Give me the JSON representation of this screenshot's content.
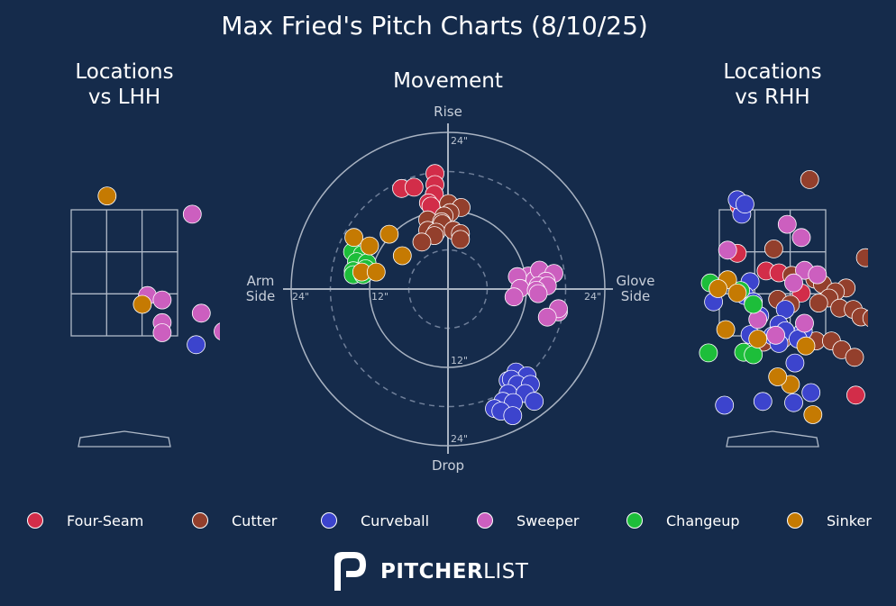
{
  "title": "Max Fried's Pitch Charts (8/10/25)",
  "panels": {
    "lhh_title_line1": "Locations",
    "lhh_title_line2": "vs LHH",
    "movement_title": "Movement",
    "rhh_title_line1": "Locations",
    "rhh_title_line2": "vs RHH"
  },
  "movement_axes": {
    "top": "Rise",
    "bottom": "Drop",
    "left_line1": "Arm",
    "left_line2": "Side",
    "right_line1": "Glove",
    "right_line2": "Side",
    "ring_labels": {
      "top": "24\"",
      "bottom_inner": "12\"",
      "bottom_outer": "24\"",
      "left_outer": "24\"",
      "left_inner": "12\"",
      "right_outer": "24\""
    }
  },
  "colors": {
    "background": "#152b4b",
    "Four-Seam": "#d22d49",
    "Cutter": "#933f2c",
    "Curveball": "#3c44cd",
    "Sweeper": "#cc5fbf",
    "Changeup": "#1dbe3a",
    "Sinker": "#c57a02"
  },
  "legend": [
    "Four-Seam",
    "Cutter",
    "Curveball",
    "Sweeper",
    "Changeup",
    "Sinker"
  ],
  "brand": {
    "bold": "PITCHER",
    "light": "LIST",
    "icon": "pitcherlist-p-logo-icon"
  },
  "chart_data": [
    {
      "type": "scatter",
      "title": "Locations vs LHH",
      "xlabel": "",
      "ylabel": "",
      "units": "catcher-view plate location, feet",
      "xlim": [
        -1.42,
        2.55
      ],
      "ylim": [
        -0.4,
        4.73
      ],
      "strike_zone": {
        "x": [
          -0.83,
          0.83
        ],
        "z": [
          1.5,
          3.5
        ]
      },
      "points": [
        {
          "pitch": "Sinker",
          "x": -0.27,
          "z": 3.72
        },
        {
          "pitch": "Sweeper",
          "x": 1.06,
          "z": 3.43
        },
        {
          "pitch": "Sweeper",
          "x": 0.36,
          "z": 2.14
        },
        {
          "pitch": "Sweeper",
          "x": 0.59,
          "z": 2.07
        },
        {
          "pitch": "Sinker",
          "x": 0.28,
          "z": 2.0
        },
        {
          "pitch": "Sweeper",
          "x": 1.2,
          "z": 1.86
        },
        {
          "pitch": "Sweeper",
          "x": 0.59,
          "z": 1.71
        },
        {
          "pitch": "Sweeper",
          "x": 0.59,
          "z": 1.55
        },
        {
          "pitch": "Sweeper",
          "x": 1.54,
          "z": 1.57
        },
        {
          "pitch": "Curveball",
          "x": 1.12,
          "z": 1.36
        }
      ]
    },
    {
      "type": "scatter",
      "title": "Movement",
      "xlabel": "",
      "ylabel": "",
      "units": "induced movement, inches (x: arm side negative, glove side positive; y: rise positive, drop negative)",
      "xlim": [
        -26,
        26
      ],
      "ylim": [
        -26,
        26
      ],
      "rings": [
        6,
        12,
        18,
        24
      ],
      "points": [
        {
          "pitch": "Four-Seam",
          "x": -2.0,
          "y": 17.7
        },
        {
          "pitch": "Four-Seam",
          "x": -2.0,
          "y": 16.0
        },
        {
          "pitch": "Four-Seam",
          "x": -2.1,
          "y": 14.5
        },
        {
          "pitch": "Four-Seam",
          "x": -7.1,
          "y": 15.4
        },
        {
          "pitch": "Four-Seam",
          "x": -5.2,
          "y": 15.6
        },
        {
          "pitch": "Four-Seam",
          "x": -3.0,
          "y": 13.2
        },
        {
          "pitch": "Four-Seam",
          "x": -2.6,
          "y": 12.7
        },
        {
          "pitch": "Cutter",
          "x": 0.1,
          "y": 13.1
        },
        {
          "pitch": "Cutter",
          "x": 2.0,
          "y": 12.5
        },
        {
          "pitch": "Cutter",
          "x": 0.3,
          "y": 11.7
        },
        {
          "pitch": "Cutter",
          "x": -0.6,
          "y": 11.2
        },
        {
          "pitch": "Cutter",
          "x": -3.1,
          "y": 10.6
        },
        {
          "pitch": "Cutter",
          "x": -1.0,
          "y": 10.3
        },
        {
          "pitch": "Cutter",
          "x": -0.9,
          "y": 10.0
        },
        {
          "pitch": "Cutter",
          "x": -3.1,
          "y": 9.0
        },
        {
          "pitch": "Cutter",
          "x": -1.8,
          "y": 8.7
        },
        {
          "pitch": "Cutter",
          "x": 0.8,
          "y": 9.0
        },
        {
          "pitch": "Cutter",
          "x": 1.9,
          "y": 8.5
        },
        {
          "pitch": "Cutter",
          "x": -2.1,
          "y": 8.2
        },
        {
          "pitch": "Cutter",
          "x": 1.9,
          "y": 7.6
        },
        {
          "pitch": "Cutter",
          "x": -4.0,
          "y": 7.2
        },
        {
          "pitch": "Curveball",
          "x": 9.2,
          "y": -14.0
        },
        {
          "pitch": "Curveball",
          "x": 10.4,
          "y": -12.7
        },
        {
          "pitch": "Curveball",
          "x": 12.1,
          "y": -13.3
        },
        {
          "pitch": "Curveball",
          "x": 9.7,
          "y": -13.8
        },
        {
          "pitch": "Curveball",
          "x": 10.6,
          "y": -14.6
        },
        {
          "pitch": "Curveball",
          "x": 12.6,
          "y": -14.6
        },
        {
          "pitch": "Curveball",
          "x": 9.2,
          "y": -16.0
        },
        {
          "pitch": "Curveball",
          "x": 11.8,
          "y": -16.0
        },
        {
          "pitch": "Curveball",
          "x": 8.4,
          "y": -17.2
        },
        {
          "pitch": "Curveball",
          "x": 10.0,
          "y": -17.4
        },
        {
          "pitch": "Curveball",
          "x": 13.2,
          "y": -17.2
        },
        {
          "pitch": "Curveball",
          "x": 7.1,
          "y": -18.3
        },
        {
          "pitch": "Curveball",
          "x": 8.1,
          "y": -18.7
        },
        {
          "pitch": "Curveball",
          "x": 9.9,
          "y": -19.4
        },
        {
          "pitch": "Sweeper",
          "x": 12.3,
          "y": 2.0
        },
        {
          "pitch": "Sweeper",
          "x": 13.3,
          "y": 1.4
        },
        {
          "pitch": "Sweeper",
          "x": 14.0,
          "y": 2.9
        },
        {
          "pitch": "Sweeper",
          "x": 16.2,
          "y": 2.4
        },
        {
          "pitch": "Sweeper",
          "x": 10.6,
          "y": 1.9
        },
        {
          "pitch": "Sweeper",
          "x": 15.0,
          "y": 1.2
        },
        {
          "pitch": "Sweeper",
          "x": 13.8,
          "y": 0.5
        },
        {
          "pitch": "Sweeper",
          "x": 15.2,
          "y": 0.5
        },
        {
          "pitch": "Sweeper",
          "x": 11.0,
          "y": 0.1
        },
        {
          "pitch": "Sweeper",
          "x": 13.5,
          "y": -0.2
        },
        {
          "pitch": "Sweeper",
          "x": 10.1,
          "y": -1.2
        },
        {
          "pitch": "Sweeper",
          "x": 13.8,
          "y": -0.7
        },
        {
          "pitch": "Sweeper",
          "x": 16.9,
          "y": -3.5
        },
        {
          "pitch": "Sweeper",
          "x": 16.9,
          "y": -3.0
        },
        {
          "pitch": "Sweeper",
          "x": 15.2,
          "y": -4.3
        },
        {
          "pitch": "Changeup",
          "x": -14.6,
          "y": 5.7
        },
        {
          "pitch": "Changeup",
          "x": -13.1,
          "y": 5.3
        },
        {
          "pitch": "Changeup",
          "x": -14.0,
          "y": 4.2
        },
        {
          "pitch": "Changeup",
          "x": -12.4,
          "y": 4.0
        },
        {
          "pitch": "Changeup",
          "x": -14.5,
          "y": 2.8
        },
        {
          "pitch": "Changeup",
          "x": -12.6,
          "y": 3.1
        },
        {
          "pitch": "Changeup",
          "x": -14.5,
          "y": 2.2
        },
        {
          "pitch": "Changeup",
          "x": -13.0,
          "y": 2.2
        },
        {
          "pitch": "Sinker",
          "x": -14.4,
          "y": 7.9
        },
        {
          "pitch": "Sinker",
          "x": -12.0,
          "y": 6.6
        },
        {
          "pitch": "Sinker",
          "x": -9.0,
          "y": 8.4
        },
        {
          "pitch": "Sinker",
          "x": -7.0,
          "y": 5.1
        },
        {
          "pitch": "Sinker",
          "x": -13.2,
          "y": 2.6
        },
        {
          "pitch": "Sinker",
          "x": -11.0,
          "y": 2.6
        }
      ]
    },
    {
      "type": "scatter",
      "title": "Locations vs RHH",
      "xlabel": "",
      "ylabel": "",
      "units": "catcher-view plate location, feet",
      "xlim": [
        -1.42,
        2.55
      ],
      "ylim": [
        -0.4,
        4.73
      ],
      "strike_zone": {
        "x": [
          -0.83,
          0.83
        ],
        "z": [
          1.5,
          3.5
        ]
      },
      "points": [
        {
          "pitch": "Four-Seam",
          "x": -0.52,
          "z": 3.56
        },
        {
          "pitch": "Four-Seam",
          "x": -0.55,
          "z": 2.81
        },
        {
          "pitch": "Four-Seam",
          "x": -0.1,
          "z": 2.53
        },
        {
          "pitch": "Four-Seam",
          "x": 0.1,
          "z": 2.5
        },
        {
          "pitch": "Four-Seam",
          "x": 0.45,
          "z": 2.18
        },
        {
          "pitch": "Four-Seam",
          "x": 1.3,
          "z": 0.56
        },
        {
          "pitch": "Cutter",
          "x": 0.58,
          "z": 3.98
        },
        {
          "pitch": "Cutter",
          "x": 0.02,
          "z": 2.88
        },
        {
          "pitch": "Cutter",
          "x": 1.45,
          "z": 2.74
        },
        {
          "pitch": "Cutter",
          "x": 1.92,
          "z": 2.52
        },
        {
          "pitch": "Cutter",
          "x": 0.3,
          "z": 2.46
        },
        {
          "pitch": "Cutter",
          "x": 0.66,
          "z": 2.4
        },
        {
          "pitch": "Cutter",
          "x": 0.78,
          "z": 2.32
        },
        {
          "pitch": "Cutter",
          "x": 1.15,
          "z": 2.26
        },
        {
          "pitch": "Cutter",
          "x": 0.98,
          "z": 2.2
        },
        {
          "pitch": "Cutter",
          "x": 0.88,
          "z": 2.1
        },
        {
          "pitch": "Cutter",
          "x": 0.08,
          "z": 2.08
        },
        {
          "pitch": "Cutter",
          "x": 0.28,
          "z": 2.0
        },
        {
          "pitch": "Cutter",
          "x": 0.72,
          "z": 2.02
        },
        {
          "pitch": "Cutter",
          "x": 1.05,
          "z": 1.94
        },
        {
          "pitch": "Cutter",
          "x": 1.26,
          "z": 1.92
        },
        {
          "pitch": "Cutter",
          "x": 1.65,
          "z": 1.86
        },
        {
          "pitch": "Cutter",
          "x": 1.95,
          "z": 1.86
        },
        {
          "pitch": "Cutter",
          "x": 1.38,
          "z": 1.8
        },
        {
          "pitch": "Cutter",
          "x": 1.55,
          "z": 1.78
        },
        {
          "pitch": "Cutter",
          "x": -0.14,
          "z": 1.4
        },
        {
          "pitch": "Cutter",
          "x": 0.15,
          "z": 1.44
        },
        {
          "pitch": "Cutter",
          "x": 0.68,
          "z": 1.42
        },
        {
          "pitch": "Cutter",
          "x": 0.92,
          "z": 1.42
        },
        {
          "pitch": "Cutter",
          "x": 1.08,
          "z": 1.28
        },
        {
          "pitch": "Cutter",
          "x": 1.28,
          "z": 1.16
        },
        {
          "pitch": "Curveball",
          "x": -0.48,
          "z": 3.43
        },
        {
          "pitch": "Curveball",
          "x": -0.55,
          "z": 3.66
        },
        {
          "pitch": "Curveball",
          "x": -0.43,
          "z": 3.59
        },
        {
          "pitch": "Curveball",
          "x": -0.35,
          "z": 2.36
        },
        {
          "pitch": "Curveball",
          "x": -0.92,
          "z": 2.04
        },
        {
          "pitch": "Curveball",
          "x": -0.43,
          "z": 2.14
        },
        {
          "pitch": "Curveball",
          "x": -0.3,
          "z": 2.04
        },
        {
          "pitch": "Curveball",
          "x": -0.2,
          "z": 1.82
        },
        {
          "pitch": "Curveball",
          "x": 0.2,
          "z": 1.92
        },
        {
          "pitch": "Curveball",
          "x": 0.1,
          "z": 1.68
        },
        {
          "pitch": "Curveball",
          "x": 0.2,
          "z": 1.58
        },
        {
          "pitch": "Curveball",
          "x": 0.48,
          "z": 1.58
        },
        {
          "pitch": "Curveball",
          "x": -0.35,
          "z": 1.52
        },
        {
          "pitch": "Curveball",
          "x": 0.0,
          "z": 1.5
        },
        {
          "pitch": "Curveball",
          "x": 0.1,
          "z": 1.38
        },
        {
          "pitch": "Curveball",
          "x": 0.4,
          "z": 1.45
        },
        {
          "pitch": "Curveball",
          "x": 0.35,
          "z": 1.07
        },
        {
          "pitch": "Curveball",
          "x": 0.6,
          "z": 0.6
        },
        {
          "pitch": "Curveball",
          "x": -0.75,
          "z": 0.4
        },
        {
          "pitch": "Curveball",
          "x": -0.15,
          "z": 0.46
        },
        {
          "pitch": "Curveball",
          "x": 0.33,
          "z": 0.44
        },
        {
          "pitch": "Sweeper",
          "x": 0.23,
          "z": 3.27
        },
        {
          "pitch": "Sweeper",
          "x": 0.45,
          "z": 3.06
        },
        {
          "pitch": "Sweeper",
          "x": -0.7,
          "z": 2.86
        },
        {
          "pitch": "Sweeper",
          "x": 0.5,
          "z": 2.54
        },
        {
          "pitch": "Sweeper",
          "x": 0.7,
          "z": 2.47
        },
        {
          "pitch": "Sweeper",
          "x": 0.33,
          "z": 2.34
        },
        {
          "pitch": "Sweeper",
          "x": -0.23,
          "z": 1.76
        },
        {
          "pitch": "Sweeper",
          "x": 0.5,
          "z": 1.7
        },
        {
          "pitch": "Sweeper",
          "x": 0.05,
          "z": 1.51
        },
        {
          "pitch": "Changeup",
          "x": -0.97,
          "z": 2.34
        },
        {
          "pitch": "Changeup",
          "x": -0.5,
          "z": 2.22
        },
        {
          "pitch": "Changeup",
          "x": -0.3,
          "z": 2.0
        },
        {
          "pitch": "Changeup",
          "x": -1.0,
          "z": 1.23
        },
        {
          "pitch": "Changeup",
          "x": -0.45,
          "z": 1.24
        },
        {
          "pitch": "Changeup",
          "x": -0.3,
          "z": 1.2
        },
        {
          "pitch": "Sinker",
          "x": -0.7,
          "z": 2.39
        },
        {
          "pitch": "Sinker",
          "x": -0.85,
          "z": 2.25
        },
        {
          "pitch": "Sinker",
          "x": -0.55,
          "z": 2.18
        },
        {
          "pitch": "Sinker",
          "x": -0.73,
          "z": 1.6
        },
        {
          "pitch": "Sinker",
          "x": -0.23,
          "z": 1.45
        },
        {
          "pitch": "Sinker",
          "x": 0.52,
          "z": 1.34
        },
        {
          "pitch": "Sinker",
          "x": 0.28,
          "z": 0.73
        },
        {
          "pitch": "Sinker",
          "x": 0.08,
          "z": 0.85
        },
        {
          "pitch": "Sinker",
          "x": 0.63,
          "z": 0.25
        }
      ]
    }
  ]
}
